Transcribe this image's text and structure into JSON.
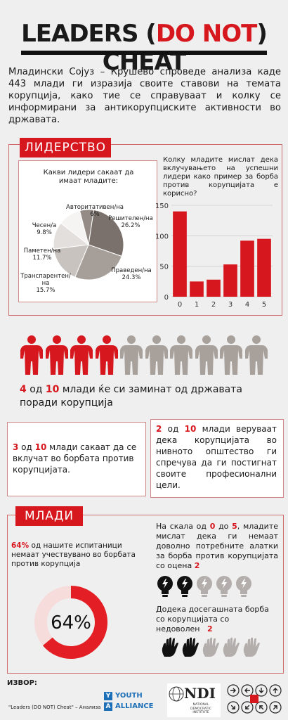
{
  "title": {
    "part1": "LEADERS (",
    "part2": "DO NOT",
    "part3": ") CHEAT"
  },
  "intro": "Младински Сојуз – Крушево спроведе анализа каде 443 млади ги изразија своите ставови на темата корупција, како тие се справуваат и колку се информирани за антикорупциските активности во државата.",
  "leadership": {
    "label": "ЛИДЕРСТВО",
    "pie_title": "Какви лидери сакаат да имаат младите:",
    "bar_title": "Колку младите мислат дека вклучувањето на успешни лидери како пример за борба против корупцијата е корисно?"
  },
  "chart_data": [
    {
      "type": "pie",
      "slices": [
        {
          "label": "Решителен/на",
          "value": 26.2,
          "value_label": "26.2%",
          "color": "#7b716c"
        },
        {
          "label": "Праведен/на",
          "value": 24.3,
          "value_label": "24.3%",
          "color": "#a59e99"
        },
        {
          "label": "Транспарентен/на",
          "value": 15.7,
          "value_label": "15.7%",
          "color": "#c9c3bf"
        },
        {
          "label": "Паметен/на",
          "value": 11.7,
          "value_label": "11.7%",
          "color": "#e3dfdc"
        },
        {
          "label": "Чесен/а",
          "value": 9.8,
          "value_label": "9.8%",
          "color": "#f6f4f2"
        },
        {
          "label": "Авторитативен/на",
          "value": 6,
          "value_label": "6%",
          "color": "#948b86"
        }
      ]
    },
    {
      "type": "bar",
      "categories": [
        "0",
        "1",
        "2",
        "3",
        "4",
        "5"
      ],
      "values": [
        140,
        25,
        28,
        53,
        92,
        95
      ],
      "yticks": [
        "0",
        "50",
        "100",
        "150"
      ],
      "ylim": [
        0,
        150
      ],
      "color": "#d7171e"
    }
  ],
  "corruption_leave": {
    "n1": "4",
    "mid1": " од ",
    "n2": "10",
    "rest": " млади ќе си заминат од државата поради корупција",
    "filled": 4,
    "total": 10
  },
  "box_left": {
    "n1": "3",
    "mid": " од ",
    "n2": "10",
    "rest": " млади сакаат да се вклучат во борбата против корупцијата."
  },
  "box_right": {
    "n1": "2",
    "mid": " од ",
    "n2": "10",
    "rest": " млади веруваат дека корупцијата во нивното општество ги спречува да ги постигнат своите професионални цели."
  },
  "youth": {
    "label": "МЛАДИ",
    "pct_bold": "64%",
    "pct_text": " од нашите испитаници немаат учествувано во борбата против корупција",
    "donut_value": 64,
    "donut_label": "64%",
    "scale_a": "На скала од ",
    "scale_b": "0",
    "scale_c": " до ",
    "scale_d": "5",
    "scale_e": ", младите мислат дека ги немаат доволно потребните алатки за борба против корупцијата со оцена ",
    "scale_f": "2",
    "bulbs_filled": 2,
    "bulbs_total": 5,
    "fight_text": "Додека досегашната борба со корупцијата со недоволен",
    "fight_score": "2",
    "hands_filled": 2,
    "hands_total": 5
  },
  "footer": {
    "source_label": "ИЗВОР:",
    "source_text": "\"Leaders (DO NOT) Cheat\" – Анализа",
    "ya_line1": "YOUTH",
    "ya_line2": "ALLIANCE",
    "ndi_big": "NDI",
    "ndi_small": "NATIONAL DEMOCRATIC INSTITUTE"
  }
}
